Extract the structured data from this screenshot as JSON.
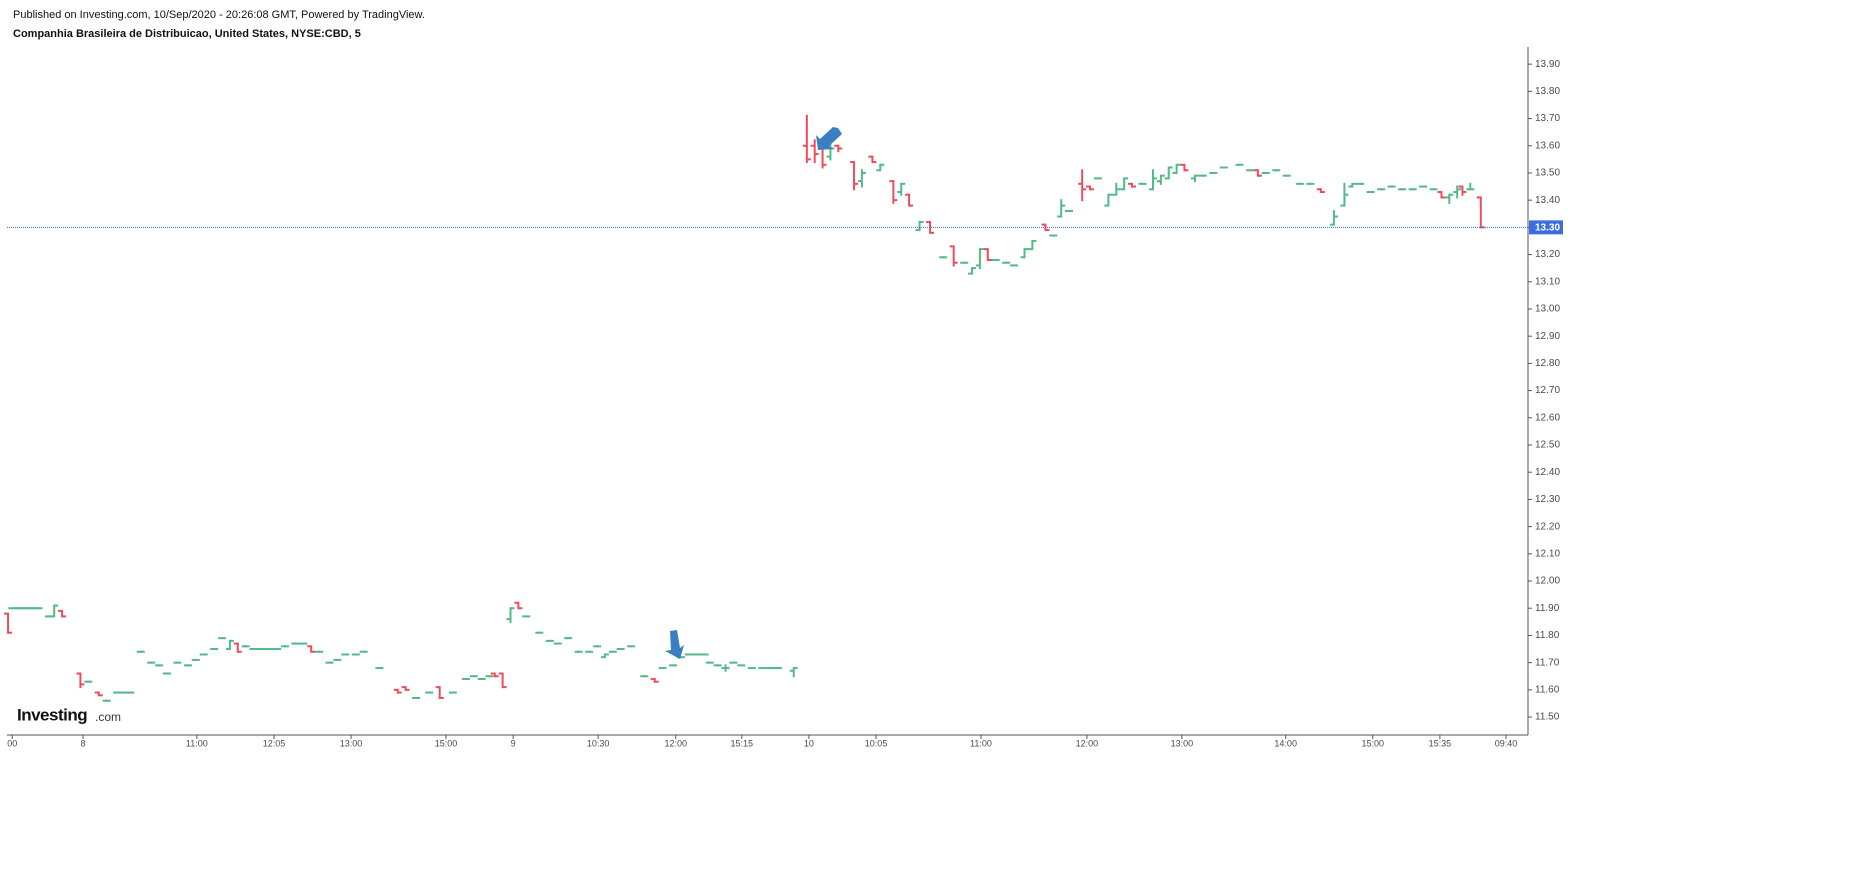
{
  "chart_data": {
    "type": "ohlc",
    "header": "Published on Investing.com, 10/Sep/2020 - 20:26:08 GMT, Powered by TradingView.",
    "title": "Companhia Brasileira de Distribuicao, United States, NYSE:CBD, 5",
    "logo": "Investing",
    "logo_suffix": ".com",
    "up_color": "#53b987",
    "down_color": "#eb4d5c",
    "xlim": [
      0,
      290
    ],
    "ylim": [
      11.434,
      13.963
    ],
    "xticks": [
      {
        "value": 1,
        "label": "00"
      },
      {
        "value": 14.5,
        "label": "8"
      },
      {
        "value": 36.2,
        "label": "11:00"
      },
      {
        "value": 50.9,
        "label": "12:05"
      },
      {
        "value": 65.6,
        "label": "13:00"
      },
      {
        "value": 83.7,
        "label": "15:00"
      },
      {
        "value": 96.5,
        "label": "9"
      },
      {
        "value": 112.7,
        "label": "10:30"
      },
      {
        "value": 127.5,
        "label": "12:00"
      },
      {
        "value": 140.1,
        "label": "15:15"
      },
      {
        "value": 152.9,
        "label": "10"
      },
      {
        "value": 165.7,
        "label": "10:05"
      },
      {
        "value": 185.7,
        "label": "11:00"
      },
      {
        "value": 205.9,
        "label": "12:00"
      },
      {
        "value": 224,
        "label": "13:00"
      },
      {
        "value": 243.8,
        "label": "14:00"
      },
      {
        "value": 260.4,
        "label": "15:00"
      },
      {
        "value": 273.2,
        "label": "15:35"
      },
      {
        "value": 285.8,
        "label": "09:40"
      }
    ],
    "yticks": [
      {
        "value": 11.5,
        "label": "11.50"
      },
      {
        "value": 11.6,
        "label": "11.60"
      },
      {
        "value": 11.7,
        "label": "11.70"
      },
      {
        "value": 11.8,
        "label": "11.80"
      },
      {
        "value": 11.9,
        "label": "11.90"
      },
      {
        "value": 12.0,
        "label": "12.00"
      },
      {
        "value": 12.1,
        "label": "12.10"
      },
      {
        "value": 12.2,
        "label": "12.20"
      },
      {
        "value": 12.3,
        "label": "12.30"
      },
      {
        "value": 12.4,
        "label": "12.40"
      },
      {
        "value": 12.5,
        "label": "12.50"
      },
      {
        "value": 12.6,
        "label": "12.60"
      },
      {
        "value": 12.7,
        "label": "12.70"
      },
      {
        "value": 12.8,
        "label": "12.80"
      },
      {
        "value": 12.9,
        "label": "12.90"
      },
      {
        "value": 13.0,
        "label": "13.00"
      },
      {
        "value": 13.1,
        "label": "13.10"
      },
      {
        "value": 13.2,
        "label": "13.20"
      },
      {
        "value": 13.3,
        "label": "13.30"
      },
      {
        "value": 13.4,
        "label": "13.40"
      },
      {
        "value": 13.5,
        "label": "13.50"
      },
      {
        "value": 13.6,
        "label": "13.60"
      },
      {
        "value": 13.7,
        "label": "13.70"
      },
      {
        "value": 13.8,
        "label": "13.80"
      },
      {
        "value": 13.9,
        "label": "13.90"
      }
    ],
    "last_price": {
      "value": 13.3,
      "label": "13.30"
    },
    "last_price_color": "#3d6ee0",
    "x": [
      0.2,
      1,
      2,
      3,
      4,
      5,
      6,
      8,
      9,
      10.5,
      14,
      15.5,
      17.5,
      19,
      21,
      22,
      23.5,
      25.5,
      27.5,
      29,
      30.5,
      32.5,
      34.5,
      36,
      37.5,
      39.5,
      41,
      42.5,
      44,
      45.5,
      47,
      48.5,
      50,
      51.5,
      53,
      55,
      56.5,
      58,
      59.5,
      61.5,
      63,
      64.5,
      66.5,
      68,
      71,
      74.5,
      76,
      78,
      80.5,
      82.5,
      85,
      87.5,
      89,
      90.5,
      92,
      93,
      94.5,
      96,
      97.5,
      99,
      101.5,
      103.5,
      105,
      107,
      109,
      111,
      112.5,
      114,
      115.5,
      117,
      119,
      121.5,
      123.5,
      125,
      127,
      128.5,
      130,
      131.5,
      133,
      134,
      135.5,
      137,
      138.5,
      140,
      142,
      144,
      145.5,
      147,
      150,
      152.5,
      154,
      155.5,
      157,
      158.5,
      161.5,
      163,
      165,
      166.5,
      169,
      170.5,
      172,
      174,
      176,
      178.5,
      180.5,
      182.5,
      184,
      185.5,
      187,
      188.5,
      190.5,
      192,
      194,
      195.5,
      198,
      199.5,
      201,
      202.5,
      205,
      206.5,
      208,
      210,
      211.5,
      213,
      214.5,
      216.5,
      218.5,
      220,
      221.5,
      223,
      224.5,
      226.5,
      228,
      230,
      232,
      235,
      237,
      238.5,
      240,
      242,
      244,
      246.5,
      248.5,
      250.5,
      253,
      255,
      256.5,
      258,
      260,
      262,
      264,
      266,
      268,
      270,
      272,
      273.5,
      275,
      276.5,
      277.5,
      279,
      281
    ],
    "open": [
      11.88,
      11.9,
      11.9,
      11.9,
      11.9,
      11.9,
      11.9,
      11.87,
      11.87,
      11.89,
      11.66,
      11.63,
      11.59,
      11.56,
      11.59,
      11.59,
      11.59,
      11.74,
      11.7,
      11.69,
      11.66,
      11.7,
      11.69,
      11.71,
      11.73,
      11.75,
      11.79,
      11.75,
      11.77,
      11.76,
      11.75,
      11.75,
      11.75,
      11.75,
      11.76,
      11.77,
      11.77,
      11.76,
      11.74,
      11.7,
      11.71,
      11.73,
      11.73,
      11.74,
      11.68,
      11.6,
      11.61,
      11.57,
      11.59,
      11.61,
      11.59,
      11.64,
      11.65,
      11.64,
      11.65,
      11.66,
      11.66,
      11.86,
      11.92,
      11.87,
      11.81,
      11.78,
      11.77,
      11.79,
      11.74,
      11.74,
      11.76,
      11.72,
      11.74,
      11.75,
      11.76,
      11.65,
      11.64,
      11.68,
      11.69,
      11.72,
      11.73,
      11.73,
      11.73,
      11.7,
      11.69,
      11.68,
      11.7,
      11.69,
      11.68,
      11.68,
      11.68,
      11.68,
      11.67,
      13.6,
      13.6,
      13.59,
      13.56,
      13.6,
      13.54,
      13.47,
      13.56,
      13.51,
      13.47,
      13.43,
      13.42,
      13.29,
      13.32,
      13.19,
      13.23,
      13.17,
      13.13,
      13.16,
      13.22,
      13.18,
      13.17,
      13.16,
      13.19,
      13.22,
      13.31,
      13.27,
      13.34,
      13.36,
      13.46,
      13.45,
      13.48,
      13.38,
      13.42,
      13.44,
      13.46,
      13.46,
      13.44,
      13.47,
      13.48,
      13.5,
      13.53,
      13.48,
      13.49,
      13.5,
      13.52,
      13.53,
      13.51,
      13.51,
      13.5,
      13.51,
      13.49,
      13.46,
      13.46,
      13.44,
      13.31,
      13.38,
      13.45,
      13.46,
      13.43,
      13.44,
      13.45,
      13.44,
      13.44,
      13.45,
      13.44,
      13.43,
      13.41,
      13.43,
      13.45,
      13.44,
      13.41
    ],
    "high": [
      11.88,
      11.9,
      11.9,
      11.9,
      11.9,
      11.9,
      11.9,
      11.87,
      11.91,
      11.89,
      11.66,
      11.63,
      11.59,
      11.56,
      11.59,
      11.59,
      11.59,
      11.74,
      11.7,
      11.69,
      11.66,
      11.7,
      11.69,
      11.71,
      11.73,
      11.75,
      11.79,
      11.78,
      11.77,
      11.76,
      11.75,
      11.75,
      11.75,
      11.75,
      11.76,
      11.77,
      11.77,
      11.76,
      11.74,
      11.7,
      11.71,
      11.73,
      11.73,
      11.74,
      11.68,
      11.6,
      11.61,
      11.57,
      11.59,
      11.61,
      11.59,
      11.64,
      11.65,
      11.64,
      11.65,
      11.66,
      11.66,
      11.9,
      11.92,
      11.87,
      11.81,
      11.78,
      11.77,
      11.79,
      11.74,
      11.74,
      11.76,
      11.73,
      11.74,
      11.75,
      11.76,
      11.65,
      11.64,
      11.68,
      11.69,
      11.72,
      11.73,
      11.73,
      11.73,
      11.7,
      11.69,
      11.69,
      11.7,
      11.69,
      11.68,
      11.68,
      11.68,
      11.68,
      11.68,
      13.71,
      13.62,
      13.59,
      13.62,
      13.6,
      13.54,
      13.51,
      13.56,
      13.53,
      13.47,
      13.46,
      13.42,
      13.32,
      13.32,
      13.19,
      13.23,
      13.17,
      13.15,
      13.22,
      13.22,
      13.18,
      13.17,
      13.16,
      13.22,
      13.25,
      13.31,
      13.27,
      13.4,
      13.36,
      13.51,
      13.45,
      13.48,
      13.42,
      13.46,
      13.48,
      13.46,
      13.46,
      13.51,
      13.49,
      13.52,
      13.53,
      13.53,
      13.49,
      13.49,
      13.5,
      13.52,
      13.53,
      13.51,
      13.51,
      13.5,
      13.51,
      13.49,
      13.46,
      13.46,
      13.44,
      13.36,
      13.46,
      13.46,
      13.46,
      13.43,
      13.44,
      13.45,
      13.44,
      13.44,
      13.45,
      13.44,
      13.43,
      13.42,
      13.45,
      13.45,
      13.46,
      13.41
    ],
    "low": [
      11.81,
      11.9,
      11.9,
      11.9,
      11.9,
      11.9,
      11.9,
      11.87,
      11.87,
      11.87,
      11.61,
      11.63,
      11.58,
      11.56,
      11.59,
      11.59,
      11.59,
      11.74,
      11.7,
      11.69,
      11.66,
      11.7,
      11.69,
      11.71,
      11.73,
      11.75,
      11.79,
      11.75,
      11.74,
      11.76,
      11.75,
      11.75,
      11.75,
      11.75,
      11.76,
      11.77,
      11.77,
      11.74,
      11.74,
      11.7,
      11.71,
      11.73,
      11.73,
      11.74,
      11.68,
      11.59,
      11.6,
      11.57,
      11.59,
      11.57,
      11.59,
      11.64,
      11.65,
      11.64,
      11.65,
      11.65,
      11.61,
      11.85,
      11.9,
      11.87,
      11.81,
      11.78,
      11.77,
      11.79,
      11.74,
      11.74,
      11.76,
      11.72,
      11.74,
      11.75,
      11.76,
      11.65,
      11.63,
      11.68,
      11.69,
      11.72,
      11.73,
      11.73,
      11.73,
      11.7,
      11.69,
      11.67,
      11.7,
      11.69,
      11.68,
      11.68,
      11.68,
      11.68,
      11.65,
      13.54,
      13.54,
      13.52,
      13.55,
      13.58,
      13.44,
      13.45,
      13.54,
      13.51,
      13.39,
      13.42,
      13.38,
      13.29,
      13.28,
      13.19,
      13.16,
      13.17,
      13.13,
      13.15,
      13.18,
      13.18,
      13.17,
      13.16,
      13.19,
      13.22,
      13.29,
      13.27,
      13.34,
      13.36,
      13.4,
      13.44,
      13.48,
      13.38,
      13.42,
      13.44,
      13.45,
      13.46,
      13.44,
      13.46,
      13.48,
      13.5,
      13.51,
      13.47,
      13.49,
      13.5,
      13.52,
      13.53,
      13.51,
      13.49,
      13.5,
      13.51,
      13.49,
      13.46,
      13.46,
      13.43,
      13.31,
      13.38,
      13.45,
      13.46,
      13.43,
      13.44,
      13.45,
      13.44,
      13.44,
      13.45,
      13.44,
      13.41,
      13.39,
      13.41,
      13.42,
      13.44,
      13.3
    ],
    "close": [
      11.81,
      11.9,
      11.9,
      11.9,
      11.9,
      11.9,
      11.9,
      11.87,
      11.91,
      11.87,
      11.62,
      11.63,
      11.58,
      11.56,
      11.59,
      11.59,
      11.59,
      11.74,
      11.7,
      11.69,
      11.66,
      11.7,
      11.69,
      11.71,
      11.73,
      11.75,
      11.79,
      11.78,
      11.74,
      11.76,
      11.75,
      11.75,
      11.75,
      11.75,
      11.76,
      11.77,
      11.77,
      11.74,
      11.74,
      11.7,
      11.71,
      11.73,
      11.73,
      11.74,
      11.68,
      11.59,
      11.6,
      11.57,
      11.59,
      11.57,
      11.59,
      11.64,
      11.65,
      11.64,
      11.65,
      11.65,
      11.61,
      11.9,
      11.9,
      11.87,
      11.81,
      11.78,
      11.77,
      11.79,
      11.74,
      11.74,
      11.76,
      11.73,
      11.74,
      11.75,
      11.76,
      11.65,
      11.63,
      11.68,
      11.69,
      11.72,
      11.73,
      11.73,
      11.73,
      11.7,
      11.69,
      11.68,
      11.7,
      11.69,
      11.68,
      11.68,
      11.68,
      11.68,
      11.68,
      13.55,
      13.57,
      13.53,
      13.59,
      13.59,
      13.46,
      13.5,
      13.54,
      13.53,
      13.4,
      13.46,
      13.38,
      13.32,
      13.28,
      13.19,
      13.17,
      13.17,
      13.15,
      13.22,
      13.18,
      13.18,
      13.17,
      13.16,
      13.22,
      13.25,
      13.29,
      13.27,
      13.38,
      13.36,
      13.44,
      13.44,
      13.48,
      13.42,
      13.44,
      13.48,
      13.45,
      13.46,
      13.48,
      13.49,
      13.52,
      13.53,
      13.51,
      13.49,
      13.49,
      13.5,
      13.52,
      13.53,
      13.51,
      13.49,
      13.5,
      13.51,
      13.49,
      13.46,
      13.46,
      13.43,
      13.34,
      13.42,
      13.46,
      13.46,
      13.43,
      13.44,
      13.45,
      13.44,
      13.44,
      13.45,
      13.44,
      13.41,
      13.42,
      13.44,
      13.43,
      13.44,
      13.3
    ]
  }
}
